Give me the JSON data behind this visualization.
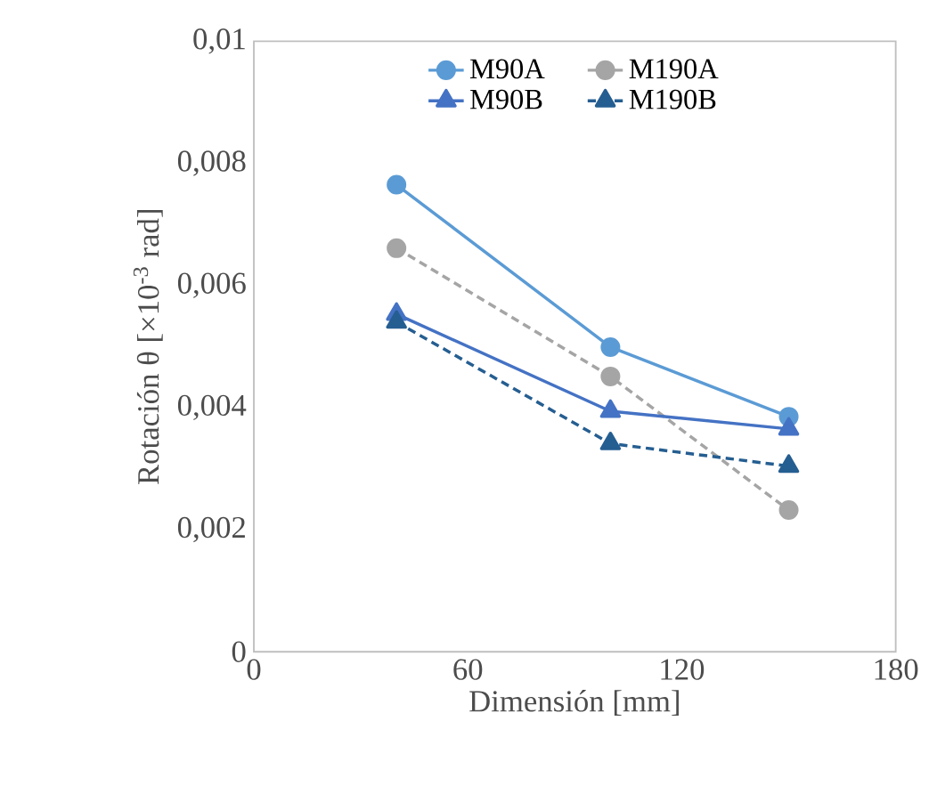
{
  "chart_data": {
    "type": "line",
    "xlabel": "Dimensión [mm]",
    "ylabel": "Rotación θ [×10$^{-3}$ rad]",
    "x": [
      40,
      100,
      150
    ],
    "series": [
      {
        "name": "M90A",
        "color": "#5b9bd5",
        "values": [
          0.00765,
          0.00499,
          0.00385
        ],
        "marker": "circle",
        "line_style": "solid"
      },
      {
        "name": "M190A",
        "color": "#a5a5a5",
        "values": [
          0.00661,
          0.00451,
          0.00232
        ],
        "marker": "circle",
        "line_style": "dashed"
      },
      {
        "name": "M90B",
        "color": "#4472c4",
        "values": [
          0.00553,
          0.00394,
          0.00365
        ],
        "marker": "triangle",
        "line_style": "solid"
      },
      {
        "name": "M190B",
        "color": "#255e91",
        "values": [
          0.0054,
          0.00341,
          0.00304
        ],
        "marker": "triangle",
        "line_style": "dashed"
      }
    ],
    "xlim": [
      0,
      180
    ],
    "xticks": [
      0,
      60,
      120,
      180
    ],
    "ylim": [
      0,
      0.01
    ],
    "yticks": [
      0,
      {
        "value": 0.002,
        "label": "0,002"
      },
      {
        "value": 0.004,
        "label": "0,004"
      },
      {
        "value": 0.006,
        "label": "0,006"
      },
      {
        "value": 0.008,
        "label": "0,008"
      },
      {
        "value": 0.01,
        "label": "0,01"
      }
    ],
    "grid": false,
    "legend": "top"
  }
}
